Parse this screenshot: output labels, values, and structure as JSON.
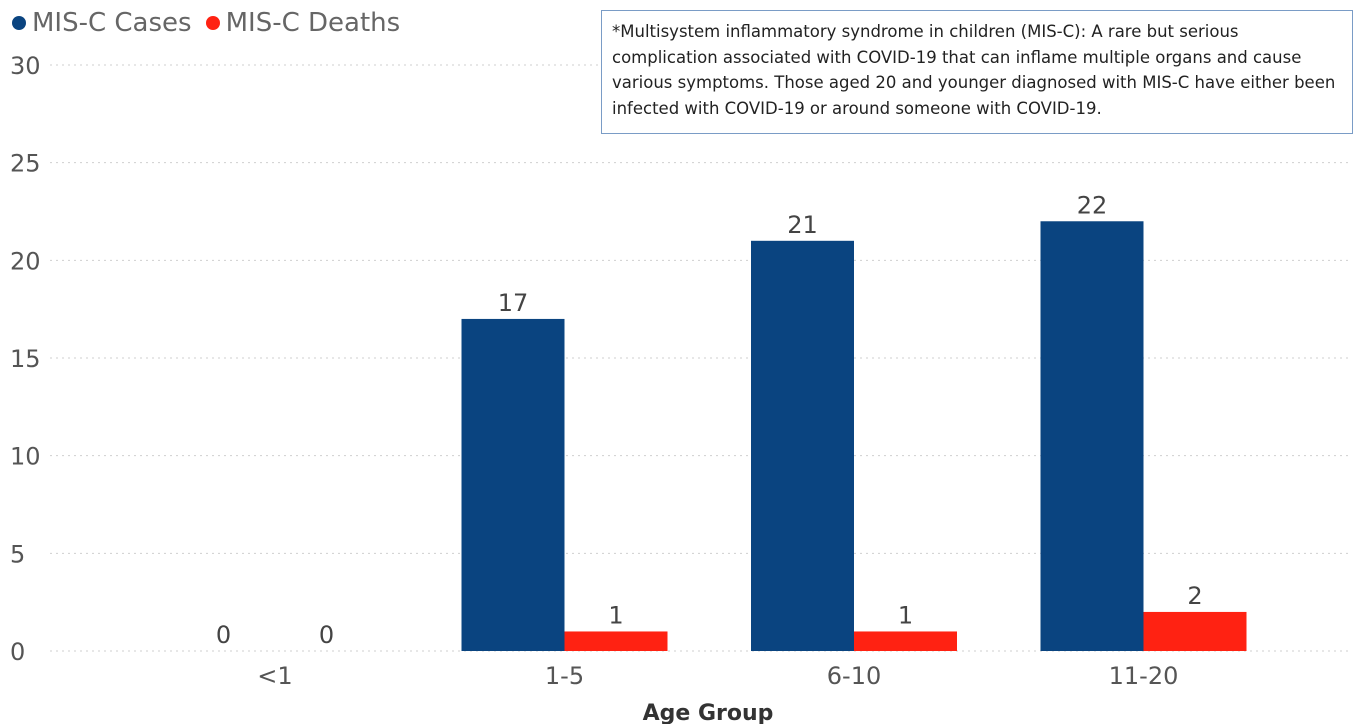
{
  "chart_data": {
    "type": "bar",
    "title": "",
    "xlabel": "Age Group",
    "ylabel": "",
    "categories": [
      "<1",
      "1-5",
      "6-10",
      "11-20"
    ],
    "series": [
      {
        "name": "MIS-C Cases",
        "color": "#0a4480",
        "values": [
          0,
          17,
          21,
          22
        ]
      },
      {
        "name": "MIS-C Deaths",
        "color": "#ff2212",
        "values": [
          0,
          1,
          1,
          2
        ]
      }
    ],
    "ylim": [
      0,
      30
    ],
    "yticks": [
      "0",
      "5",
      "10",
      "15",
      "20",
      "25",
      "30"
    ],
    "grid": true,
    "legend_position": "top-left",
    "annotation": "*Multisystem inflammatory syndrome in children (MIS-C): A rare but serious complication associated with COVID-19 that can inflame multiple organs and cause various symptoms. Those aged 20 and younger diagnosed with MIS-C have either been infected with COVID-19 or around someone with COVID-19."
  }
}
